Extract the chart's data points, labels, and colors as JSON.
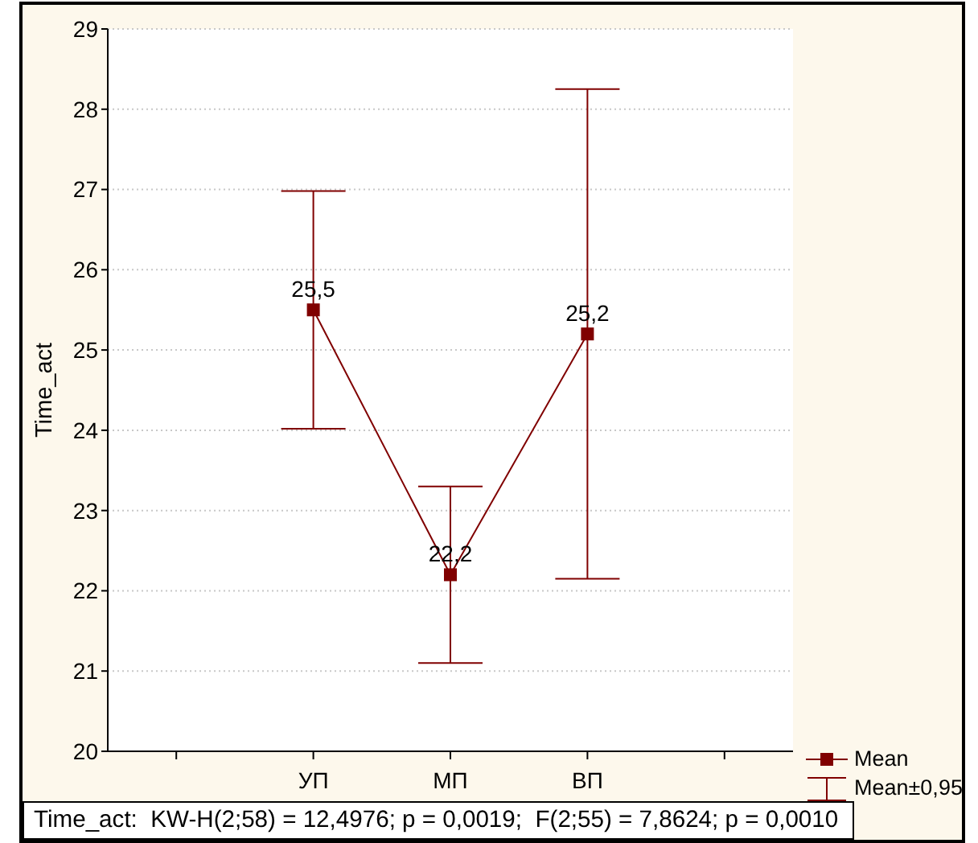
{
  "chart_data": {
    "type": "line",
    "ylabel": "Time_act",
    "categories": [
      null,
      "УП",
      "МП",
      "ВП",
      null
    ],
    "series": [
      {
        "name": "Mean",
        "color": "#800000",
        "values": [
          null,
          25.5,
          22.2,
          25.2,
          null
        ],
        "errors": [
          null,
          1.48,
          1.1,
          3.05,
          null
        ],
        "value_labels": [
          null,
          "25,5",
          "22,2",
          "25,2",
          null
        ]
      }
    ],
    "ylim": [
      20,
      29
    ],
    "yticks": [
      20,
      21,
      22,
      23,
      24,
      25,
      26,
      27,
      28,
      29
    ],
    "grid": "y",
    "legend": "bottom right",
    "marker": "square",
    "line_style": "solid",
    "annotations": [
      "Mean±0,95",
      "Time_act:  KW-H(2;58) = 12,4976; p = 0,0019;  F(2;55) = 7,8624; p = 0,0010"
    ]
  }
}
